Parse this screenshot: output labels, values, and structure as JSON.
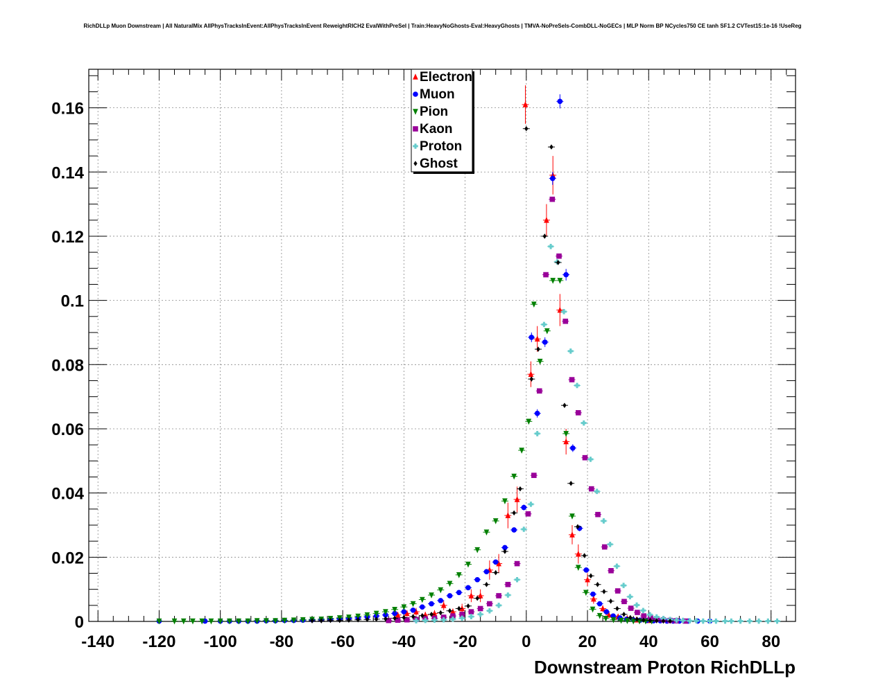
{
  "chart_data": {
    "type": "scatter",
    "title": "RichDLLp Muon Downstream | All NaturalMix AllPhysTracksInEvent:AllPhysTracksInEvent ReweightRICH2 EvalWithPreSel | Train:HeavyNoGhosts-Eval:HeavyGhosts | TMVA-NoPreSels-CombDLL-NoGECs | MLP Norm BP NCycles750 CE tanh SF1.2 CVTest15:1e-16 !UseReg",
    "xlabel": "Downstream Proton RichDLLp",
    "ylabel": "",
    "xlim": [
      -143,
      88
    ],
    "ylim": [
      0,
      0.172
    ],
    "grid": true,
    "legend_position": "top-center",
    "x_ticks": [
      -140,
      -120,
      -100,
      -80,
      -60,
      -40,
      -20,
      0,
      20,
      40,
      60,
      80
    ],
    "y_ticks": [
      0,
      0.02,
      0.04,
      0.06,
      0.08,
      0.1,
      0.12,
      0.14,
      0.16
    ],
    "y_tick_labels": [
      "0",
      "0.02",
      "0.04",
      "0.06",
      "0.08",
      "0.1",
      "0.12",
      "0.14",
      "0.16"
    ],
    "series": [
      {
        "name": "Electron",
        "color": "#ff0000",
        "marker": "triangle-up",
        "x": [
          -42,
          -39,
          -36,
          -33,
          -30,
          -27,
          -24,
          -21,
          -18,
          -15,
          -12,
          -9,
          -6,
          -3,
          -0.3,
          1.5,
          3.6,
          6.6,
          8.7,
          11,
          13,
          15,
          17,
          20,
          22,
          25,
          27,
          30,
          33,
          36,
          40
        ],
        "y": [
          0.002,
          0.0025,
          0.003,
          0.002,
          0.0025,
          0.005,
          0.003,
          0.004,
          0.008,
          0.008,
          0.016,
          0.018,
          0.033,
          0.038,
          0.161,
          0.077,
          0.088,
          0.125,
          0.139,
          0.097,
          0.056,
          0.027,
          0.021,
          0.013,
          0.007,
          0.004,
          0.002,
          0.0015,
          0.001,
          0.0005,
          0.0003
        ],
        "err": [
          0.001,
          0.001,
          0.0012,
          0.001,
          0.001,
          0.0015,
          0.001,
          0.0015,
          0.002,
          0.002,
          0.003,
          0.003,
          0.004,
          0.004,
          0.006,
          0.004,
          0.004,
          0.005,
          0.006,
          0.005,
          0.004,
          0.003,
          0.003,
          0.002,
          0.0015,
          0.001,
          0.0008,
          0.0006,
          0.0005,
          0.0003,
          0.0002
        ]
      },
      {
        "name": "Muon",
        "color": "#0000ff",
        "marker": "circle",
        "x": [
          -120,
          -105,
          -100,
          -97,
          -94,
          -91,
          -88,
          -85,
          -82,
          -79,
          -76,
          -73,
          -70,
          -67,
          -64,
          -61,
          -58,
          -55,
          -52,
          -49,
          -46,
          -43,
          -40,
          -37,
          -34,
          -31,
          -28,
          -25,
          -22,
          -19,
          -16,
          -13,
          -10,
          -7,
          -4,
          -0.8,
          1.7,
          3.6,
          6.1,
          8.6,
          11,
          13,
          15.2,
          17.4,
          19.6,
          21.8,
          24,
          26.2,
          28.4,
          30.6,
          32.8,
          35,
          37.2,
          39.4,
          41.6,
          43.8,
          46,
          48,
          50,
          53,
          56,
          60
        ],
        "y": [
          0.0001,
          0.0001,
          0.0001,
          0.0001,
          0.0001,
          0.0001,
          0.0001,
          0.0002,
          0.0002,
          0.0003,
          0.0003,
          0.0004,
          0.0005,
          0.0006,
          0.0007,
          0.0008,
          0.0009,
          0.0011,
          0.0014,
          0.0017,
          0.002,
          0.0025,
          0.003,
          0.0035,
          0.0045,
          0.0055,
          0.0065,
          0.008,
          0.009,
          0.0105,
          0.013,
          0.0155,
          0.0185,
          0.023,
          0.0285,
          0.0355,
          0.0885,
          0.0648,
          0.087,
          0.138,
          0.162,
          0.108,
          0.054,
          0.029,
          0.016,
          0.0085,
          0.0055,
          0.003,
          0.0017,
          0.0011,
          0.0007,
          0.0005,
          0.0004,
          0.0003,
          0.0002,
          0.0002,
          0.0001,
          0.0001,
          0.0001,
          0.0001,
          0.0001,
          0.0001
        ],
        "err": [
          0,
          0,
          0,
          0,
          0,
          0,
          0,
          0,
          0,
          0,
          0,
          0,
          0,
          0,
          0,
          0,
          0,
          0,
          0,
          0,
          0,
          0,
          0,
          0,
          0,
          0,
          0,
          0,
          0,
          0,
          0.0005,
          0.0005,
          0.0006,
          0.0007,
          0.0008,
          0.0009,
          0.0015,
          0.0013,
          0.0015,
          0.002,
          0.0022,
          0.0018,
          0.0012,
          0.0009,
          0.0006,
          0.0004,
          0.0003,
          0,
          0,
          0,
          0,
          0,
          0,
          0,
          0,
          0,
          0,
          0,
          0,
          0,
          0,
          0
        ]
      },
      {
        "name": "Pion",
        "color": "#008000",
        "marker": "triangle-down",
        "x": [
          -120,
          -115,
          -112,
          -109,
          -106,
          -103,
          -100,
          -97,
          -94,
          -91,
          -88,
          -85,
          -82,
          -79,
          -76,
          -73,
          -70,
          -67,
          -64,
          -61,
          -58,
          -55,
          -52,
          -49,
          -46,
          -43,
          -40,
          -37,
          -34,
          -31,
          -28,
          -25,
          -22,
          -19,
          -16,
          -13,
          -10,
          -7,
          -4,
          -1.5,
          0.8,
          2.5,
          4.5,
          6.8,
          8.7,
          11,
          13,
          15,
          17,
          19.5,
          21.7,
          24,
          26,
          28.5,
          31,
          33,
          35,
          37,
          39,
          41
        ],
        "y": [
          0.0001,
          0.0001,
          0.0001,
          0.0001,
          0.0001,
          0.0001,
          0.0001,
          0.0001,
          0.0001,
          0.0001,
          0.0002,
          0.0002,
          0.0002,
          0.0003,
          0.0004,
          0.0005,
          0.0006,
          0.0007,
          0.0009,
          0.0011,
          0.0013,
          0.0016,
          0.002,
          0.0025,
          0.003,
          0.0037,
          0.0045,
          0.0055,
          0.0068,
          0.0082,
          0.0098,
          0.0118,
          0.0145,
          0.0178,
          0.0223,
          0.0278,
          0.0313,
          0.0375,
          0.0452,
          0.0533,
          0.0623,
          0.0988,
          0.081,
          0.0905,
          0.1062,
          0.1062,
          0.0585,
          0.0328,
          0.0168,
          0.009,
          0.0038,
          0.0018,
          0.0009,
          0.0005,
          0.0003,
          0.0002,
          0.0001,
          0.0001,
          0.0001,
          0.0001
        ],
        "err": [
          0,
          0,
          0,
          0,
          0,
          0,
          0,
          0,
          0,
          0,
          0,
          0,
          0,
          0,
          0,
          0,
          0,
          0,
          0,
          0,
          0,
          0,
          0,
          0,
          0,
          0,
          0,
          0,
          0,
          0,
          0,
          0,
          0,
          0,
          0,
          0,
          0,
          0,
          0,
          0,
          0,
          0,
          0,
          0,
          0,
          0,
          0,
          0,
          0,
          0,
          0,
          0,
          0,
          0,
          0,
          0,
          0,
          0,
          0,
          0
        ]
      },
      {
        "name": "Kaon",
        "color": "#990099",
        "marker": "square",
        "x": [
          -45,
          -42,
          -39,
          -36,
          -33,
          -30,
          -27,
          -24,
          -21,
          -18,
          -15,
          -12,
          -9,
          -6,
          -3,
          0.6,
          2.5,
          4.3,
          6.4,
          8.5,
          10.7,
          12.8,
          14.9,
          17,
          19.2,
          21.3,
          23.4,
          25.6,
          27.7,
          29.9,
          32,
          34.2,
          36.3,
          38.4,
          40.6,
          42.7,
          44.8,
          47,
          49,
          52
        ],
        "y": [
          0.0003,
          0.0004,
          0.0005,
          0.0006,
          0.0008,
          0.001,
          0.0013,
          0.0017,
          0.0022,
          0.003,
          0.004,
          0.0055,
          0.008,
          0.0115,
          0.018,
          0.0335,
          0.0455,
          0.0718,
          0.108,
          0.1315,
          0.1138,
          0.0935,
          0.0753,
          0.065,
          0.051,
          0.0413,
          0.0333,
          0.0232,
          0.0158,
          0.0095,
          0.0062,
          0.0041,
          0.0028,
          0.0017,
          0.0011,
          0.0007,
          0.0005,
          0.0003,
          0.0002,
          0.0001
        ],
        "err": [
          0,
          0,
          0,
          0,
          0,
          0,
          0,
          0,
          0,
          0,
          0,
          0,
          0,
          0,
          0,
          0,
          0,
          0,
          0,
          0,
          0,
          0,
          0,
          0,
          0,
          0,
          0,
          0,
          0,
          0,
          0,
          0,
          0,
          0,
          0,
          0,
          0,
          0,
          0,
          0
        ]
      },
      {
        "name": "Proton",
        "color": "#66cccc",
        "marker": "cross",
        "x": [
          -36,
          -33,
          -30,
          -27,
          -24,
          -21,
          -18,
          -15,
          -12,
          -9,
          -6,
          -3,
          -0.8,
          1.5,
          3.6,
          5.8,
          8,
          10.1,
          12.3,
          14.5,
          16.6,
          18.8,
          21,
          23.1,
          25.3,
          27.4,
          29.6,
          31.8,
          33.9,
          36.1,
          38.2,
          40.4,
          42.6,
          44.8,
          47,
          49.1,
          51.2,
          53.4,
          55.6,
          57.8,
          60,
          62,
          65,
          67,
          70,
          73,
          76,
          79,
          82
        ],
        "y": [
          0.0002,
          0.0003,
          0.0004,
          0.0005,
          0.0007,
          0.001,
          0.0015,
          0.0022,
          0.0033,
          0.005,
          0.0082,
          0.013,
          0.0287,
          0.0365,
          0.0585,
          0.0925,
          0.1168,
          0.112,
          0.0965,
          0.0842,
          0.0735,
          0.0618,
          0.0505,
          0.0405,
          0.0313,
          0.024,
          0.0172,
          0.0112,
          0.0077,
          0.0051,
          0.0034,
          0.0021,
          0.0014,
          0.0009,
          0.0006,
          0.0004,
          0.0003,
          0.0002,
          0.0002,
          0.0001,
          0.0001,
          0.0001,
          0.0001,
          0.0001,
          0.0001,
          0.0001,
          0.0001,
          0.0001,
          0.0001
        ],
        "err": [
          0,
          0,
          0,
          0,
          0,
          0,
          0,
          0,
          0,
          0,
          0,
          0,
          0,
          0,
          0,
          0,
          0,
          0,
          0,
          0,
          0,
          0,
          0,
          0,
          0,
          0,
          0,
          0,
          0,
          0,
          0,
          0,
          0,
          0,
          0,
          0,
          0,
          0,
          0,
          0,
          0,
          0,
          0,
          0,
          0,
          0,
          0,
          0,
          0
        ]
      },
      {
        "name": "Ghost",
        "color": "#000000",
        "marker": "diamond",
        "x": [
          -70,
          -67,
          -64,
          -61,
          -58,
          -55,
          -52,
          -49,
          -46,
          -43,
          -40,
          -37,
          -34,
          -31,
          -28,
          -25,
          -22,
          -19,
          -16,
          -13,
          -10,
          -7,
          -4,
          -2,
          0,
          1.7,
          3.9,
          6,
          8.2,
          10.4,
          12.5,
          14.6,
          16.8,
          19,
          21.1,
          23.3,
          25.4,
          27.6,
          29.7,
          31.9,
          34,
          36.2,
          38.3,
          40.5,
          42.6,
          44.8,
          47
        ],
        "y": [
          0.0002,
          0.0002,
          0.0003,
          0.0003,
          0.0004,
          0.0005,
          0.0006,
          0.0007,
          0.0008,
          0.001,
          0.0012,
          0.0015,
          0.0018,
          0.0022,
          0.0027,
          0.0033,
          0.004,
          0.0048,
          0.0072,
          0.0115,
          0.0152,
          0.0218,
          0.0338,
          0.0413,
          0.1535,
          0.0755,
          0.0848,
          0.12,
          0.1478,
          0.1118,
          0.0673,
          0.043,
          0.0295,
          0.0205,
          0.0142,
          0.0115,
          0.0093,
          0.0063,
          0.004,
          0.0022,
          0.0012,
          0.0007,
          0.0004,
          0.0003,
          0.0002,
          0.0001,
          0.0001
        ],
        "err": [
          0,
          0,
          0,
          0,
          0,
          0,
          0,
          0,
          0,
          0,
          0,
          0,
          0,
          0,
          0,
          0,
          0,
          0,
          0,
          0,
          0,
          0,
          0,
          0,
          0,
          0,
          0,
          0,
          0,
          0,
          0,
          0,
          0,
          0,
          0,
          0,
          0,
          0,
          0,
          0,
          0,
          0,
          0,
          0,
          0,
          0,
          0
        ]
      }
    ]
  }
}
